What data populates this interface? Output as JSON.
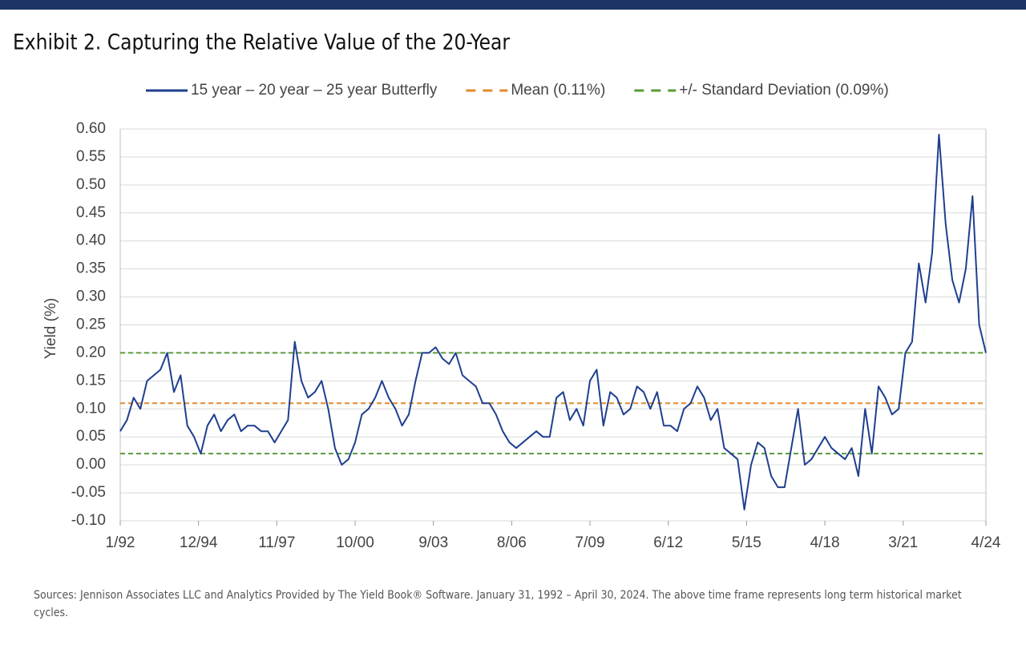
{
  "chart_data": {
    "type": "line",
    "title": "Exhibit 2. Capturing the Relative Value of the 20-Year",
    "y_label": "Yield (%)",
    "source": "Sources: Jennison Associates LLC and Analytics Provided by The Yield Book® Software. January 31, 1992 – April 30, 2024. The above time frame represents long term historical market cycles.",
    "x": [
      "1/92",
      "4/92",
      "7/92",
      "10/92",
      "1/93",
      "4/93",
      "7/93",
      "10/93",
      "1/94",
      "4/94",
      "7/94",
      "10/94",
      "1/95",
      "4/95",
      "7/95",
      "10/95",
      "1/96",
      "4/96",
      "7/96",
      "10/96",
      "1/97",
      "4/97",
      "7/97",
      "10/97",
      "1/98",
      "4/98",
      "7/98",
      "10/98",
      "1/99",
      "4/99",
      "7/99",
      "10/99",
      "1/00",
      "4/00",
      "7/00",
      "10/00",
      "1/01",
      "4/01",
      "7/01",
      "10/01",
      "1/02",
      "4/02",
      "7/02",
      "10/02",
      "1/03",
      "4/03",
      "7/03",
      "10/03",
      "1/04",
      "4/04",
      "7/04",
      "10/04",
      "1/05",
      "4/05",
      "7/05",
      "10/05",
      "1/06",
      "4/06",
      "7/06",
      "10/06",
      "1/07",
      "4/07",
      "7/07",
      "10/07",
      "1/08",
      "4/08",
      "7/08",
      "10/08",
      "1/09",
      "4/09",
      "7/09",
      "10/09",
      "1/10",
      "4/10",
      "7/10",
      "10/10",
      "1/11",
      "4/11",
      "7/11",
      "10/11",
      "1/12",
      "4/12",
      "7/12",
      "10/12",
      "1/13",
      "4/13",
      "7/13",
      "10/13",
      "1/14",
      "4/14",
      "7/14",
      "10/14",
      "1/15",
      "4/15",
      "7/15",
      "10/15",
      "1/16",
      "4/16",
      "7/16",
      "10/16",
      "1/17",
      "4/17",
      "7/17",
      "10/17",
      "1/18",
      "4/18",
      "7/18",
      "10/18",
      "1/19",
      "4/19",
      "7/19",
      "10/19",
      "1/20",
      "4/20",
      "7/20",
      "10/20",
      "1/21",
      "4/21",
      "7/21",
      "10/21",
      "1/22",
      "4/22",
      "7/22",
      "10/22",
      "1/23",
      "4/23",
      "7/23",
      "10/23",
      "1/24",
      "4/24"
    ],
    "series": [
      {
        "name": "15 year – 20 year – 25 year Butterfly",
        "color": "#1f3f8f",
        "values": [
          0.06,
          0.08,
          0.12,
          0.1,
          0.15,
          0.16,
          0.17,
          0.2,
          0.13,
          0.16,
          0.07,
          0.05,
          0.02,
          0.07,
          0.09,
          0.06,
          0.08,
          0.09,
          0.06,
          0.07,
          0.07,
          0.06,
          0.06,
          0.04,
          0.06,
          0.08,
          0.22,
          0.15,
          0.12,
          0.13,
          0.15,
          0.1,
          0.03,
          0.0,
          0.01,
          0.04,
          0.09,
          0.1,
          0.12,
          0.15,
          0.12,
          0.1,
          0.07,
          0.09,
          0.15,
          0.2,
          0.2,
          0.21,
          0.19,
          0.18,
          0.2,
          0.16,
          0.15,
          0.14,
          0.11,
          0.11,
          0.09,
          0.06,
          0.04,
          0.03,
          0.04,
          0.05,
          0.06,
          0.05,
          0.05,
          0.12,
          0.13,
          0.08,
          0.1,
          0.07,
          0.15,
          0.17,
          0.07,
          0.13,
          0.12,
          0.09,
          0.1,
          0.14,
          0.13,
          0.1,
          0.13,
          0.07,
          0.07,
          0.06,
          0.1,
          0.11,
          0.14,
          0.12,
          0.08,
          0.1,
          0.03,
          0.02,
          0.01,
          -0.08,
          0.0,
          0.04,
          0.03,
          -0.02,
          -0.04,
          -0.04,
          0.03,
          0.1,
          0.0,
          0.01,
          0.03,
          0.05,
          0.03,
          0.02,
          0.01,
          0.03,
          -0.02,
          0.1,
          0.02,
          0.14,
          0.12,
          0.09,
          0.1,
          0.2,
          0.22,
          0.36,
          0.29,
          0.38,
          0.59,
          0.43,
          0.33,
          0.29,
          0.35,
          0.48,
          0.25,
          0.2
        ]
      }
    ],
    "reference_lines": [
      {
        "name": "Mean (0.11%)",
        "color": "#e08a2c",
        "values": [
          0.11
        ]
      },
      {
        "name": "+/- Standard Deviation (0.09%)",
        "color": "#5a9a3a",
        "values": [
          0.02,
          0.2
        ]
      }
    ],
    "xlim": [
      "1/92",
      "4/24"
    ],
    "xticks": [
      "1/92",
      "12/94",
      "11/97",
      "10/00",
      "9/03",
      "8/06",
      "7/09",
      "6/12",
      "5/15",
      "4/18",
      "3/21",
      "4/24"
    ],
    "ylim": [
      -0.1,
      0.6
    ],
    "yticks": [
      {
        "value": -0.1,
        "label": "-0.10"
      },
      {
        "value": -0.05,
        "label": "-0.05"
      },
      {
        "value": 0,
        "label": "0.00"
      },
      {
        "value": 0.05,
        "label": "0.05"
      },
      {
        "value": 0.1,
        "label": "0.10"
      },
      {
        "value": 0.15,
        "label": "0.15"
      },
      {
        "value": 0.2,
        "label": "0.20"
      },
      {
        "value": 0.25,
        "label": "0.25"
      },
      {
        "value": 0.3,
        "label": "0.30"
      },
      {
        "value": 0.35,
        "label": "0.35"
      },
      {
        "value": 0.4,
        "label": "0.40"
      },
      {
        "value": 0.45,
        "label": "0.45"
      },
      {
        "value": 0.5,
        "label": "0.50"
      },
      {
        "value": 0.55,
        "label": "0.55"
      },
      {
        "value": 0.6,
        "label": "0.60"
      }
    ],
    "grid": true
  }
}
